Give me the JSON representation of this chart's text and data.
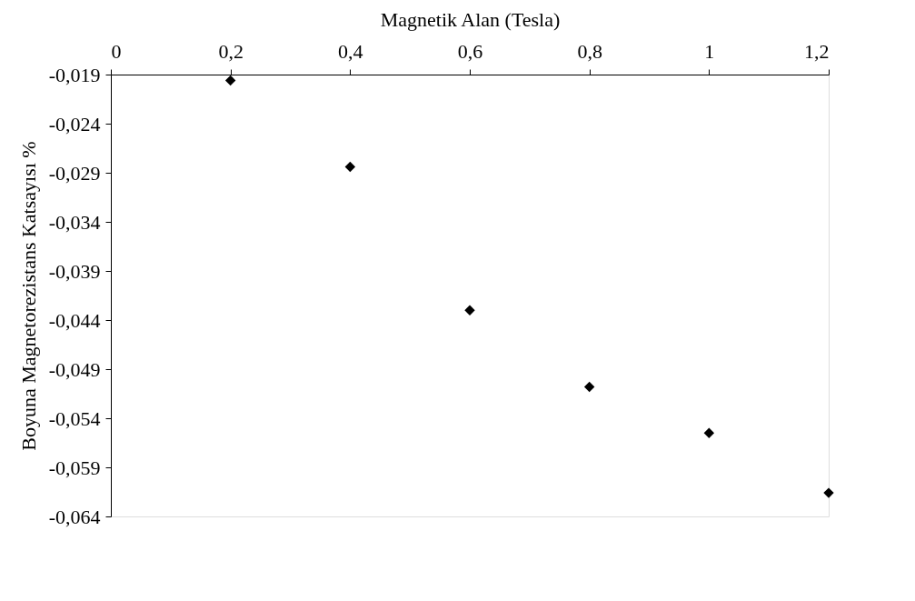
{
  "chart_data": {
    "type": "scatter",
    "xlabel": "Magnetik Alan (Tesla)",
    "ylabel": "Boyuna Magnetorezistans Katsayısı %",
    "x": [
      0.2,
      0.4,
      0.6,
      0.8,
      1.0,
      1.2
    ],
    "series": [
      {
        "color": "#000000",
        "values": [
          -0.0196,
          -0.0284,
          -0.043,
          -0.0508,
          -0.0555,
          -0.0616
        ]
      }
    ],
    "xlim": [
      0,
      1.2
    ],
    "xticks": [
      0,
      {
        "value": 0.2,
        "label": "0,2"
      },
      {
        "value": 0.4,
        "label": "0,4"
      },
      {
        "value": 0.6,
        "label": "0,6"
      },
      {
        "value": 0.8,
        "label": "0,8"
      },
      1,
      {
        "value": 1.2,
        "label": "1,2"
      }
    ],
    "ylim": [
      -0.064,
      -0.019
    ],
    "yticks": [
      {
        "value": -0.019,
        "label": "-0,019"
      },
      {
        "value": -0.024,
        "label": "-0,024"
      },
      {
        "value": -0.029,
        "label": "-0,029"
      },
      {
        "value": -0.034,
        "label": "-0,034"
      },
      {
        "value": -0.039,
        "label": "-0,039"
      },
      {
        "value": -0.044,
        "label": "-0,044"
      },
      {
        "value": -0.049,
        "label": "-0,049"
      },
      {
        "value": -0.054,
        "label": "-0,054"
      },
      {
        "value": -0.059,
        "label": "-0,059"
      },
      {
        "value": -0.064,
        "label": "-0,064"
      }
    ],
    "marker": "diamond",
    "grid": false
  }
}
